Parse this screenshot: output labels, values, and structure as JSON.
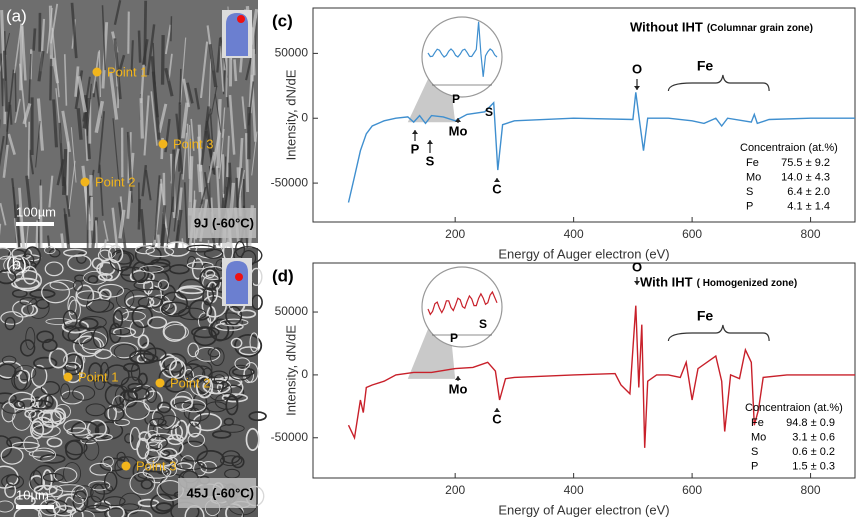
{
  "panels": [
    {
      "label": "(a)",
      "points": [
        "Point 1",
        "Point 3",
        "Point 2"
      ],
      "scale": "100µm",
      "caption": "9J (-60°C)"
    },
    {
      "label": "(b)",
      "points": [
        "Point 1",
        "Point 2",
        "Point 3"
      ],
      "scale": "10µm",
      "caption": "45J (-60°C)"
    }
  ],
  "chart_data": [
    {
      "type": "line",
      "label": "(c)",
      "title": "Without IHT",
      "subtitle": "(Columnar grain zone)",
      "x_label": "Energy of Auger electron (eV)",
      "y_label": "Intensity, dN/dE",
      "xlim": [
        -40,
        875
      ],
      "ylim": [
        -80000,
        85000
      ],
      "xticks": [
        200,
        400,
        600,
        800
      ],
      "yticks": [
        -50000,
        0,
        50000
      ],
      "annotations": [
        "P",
        "S",
        "Mo",
        "C",
        "O",
        "Fe"
      ],
      "inset_labels": [
        "P",
        "S"
      ],
      "table_title": "Concentraion (at.%)",
      "table": [
        [
          "Fe",
          "75.5 ± 9.2"
        ],
        [
          "Mo",
          "14.0 ± 4.3"
        ],
        [
          "S",
          "6.4 ± 2.0"
        ],
        [
          "P",
          "4.1 ± 1.4"
        ]
      ],
      "x": [
        20,
        30,
        40,
        50,
        60,
        80,
        100,
        120,
        130,
        140,
        150,
        160,
        180,
        200,
        220,
        250,
        265,
        272,
        280,
        300,
        400,
        500,
        505,
        512,
        518,
        525,
        560,
        600,
        620,
        640,
        650,
        660,
        700,
        705,
        710,
        730,
        800,
        875
      ],
      "series": [
        {
          "color": "#3f8fcf",
          "values": [
            -65000,
            -45000,
            -25000,
            -12000,
            -6000,
            -2000,
            0,
            1000,
            -3000,
            2000,
            -4000,
            2000,
            1000,
            -2000,
            3000,
            5000,
            12000,
            -40000,
            -5000,
            -2000,
            0,
            -1000,
            20000,
            -5000,
            -25000,
            0,
            0,
            -2000,
            -4000,
            0,
            -6000,
            0,
            -3000,
            3000,
            -4000,
            -1000,
            0,
            0
          ]
        }
      ]
    },
    {
      "type": "line",
      "label": "(d)",
      "title": "With IHT",
      "subtitle": "( Homogenized zone)",
      "x_label": "Energy of Auger electron (eV)",
      "y_label": "Intensity, dN/dE",
      "xlim": [
        -40,
        875
      ],
      "ylim": [
        -82000,
        89000
      ],
      "xticks": [
        200,
        400,
        600,
        800
      ],
      "yticks": [
        -50000,
        0,
        50000
      ],
      "annotations": [
        "Mo",
        "C",
        "O",
        "Fe"
      ],
      "inset_labels": [
        "P",
        "S"
      ],
      "table_title": "Concentraion (at.%)",
      "table": [
        [
          "Fe",
          "94.8 ± 0.9"
        ],
        [
          "Mo",
          "3.1 ± 0.6"
        ],
        [
          "S",
          "0.6 ± 0.2"
        ],
        [
          "P",
          "1.5 ± 0.3"
        ]
      ],
      "x": [
        20,
        30,
        40,
        45,
        50,
        60,
        80,
        100,
        130,
        160,
        200,
        230,
        255,
        268,
        275,
        285,
        300,
        400,
        470,
        480,
        495,
        505,
        510,
        515,
        520,
        525,
        540,
        560,
        580,
        590,
        600,
        610,
        640,
        650,
        655,
        665,
        680,
        690,
        700,
        705,
        712,
        720,
        760,
        875
      ],
      "series": [
        {
          "color": "#c8202a",
          "values": [
            -40000,
            -50000,
            -20000,
            -30000,
            -10000,
            -8000,
            -5000,
            0,
            2000,
            2000,
            5000,
            6000,
            10000,
            3000,
            -20000,
            -3000,
            -2000,
            0,
            1000,
            -8000,
            -15000,
            55000,
            -10000,
            40000,
            -58000,
            -5000,
            0,
            0,
            -2000,
            10000,
            -20000,
            5000,
            15000,
            -5000,
            -45000,
            0,
            -3000,
            20000,
            10000,
            -40000,
            -28000,
            -2000,
            0,
            0
          ]
        }
      ]
    }
  ]
}
